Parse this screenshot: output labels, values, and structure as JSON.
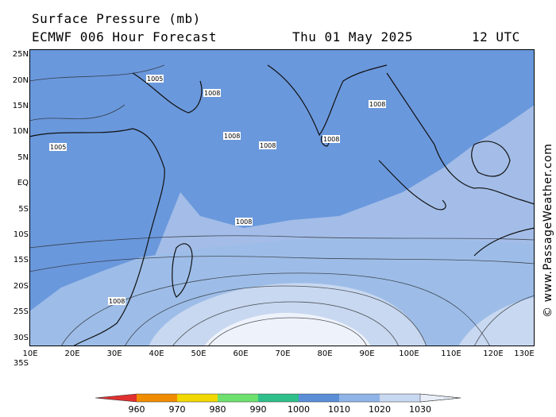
{
  "header": {
    "title": "Surface Pressure (mb)",
    "subtitle": "ECMWF 006 Hour Forecast",
    "date": "Thu 01 May 2025",
    "time": "12 UTC"
  },
  "credit": "© www.PassageWeather.com",
  "lat_labels": [
    "25N",
    "20N",
    "15N",
    "10N",
    "5N",
    "EQ",
    "5S",
    "10S",
    "15S",
    "20S",
    "25S",
    "30S",
    "35S"
  ],
  "lon_labels": [
    "10E",
    "20E",
    "30E",
    "40E",
    "50E",
    "60E",
    "70E",
    "80E",
    "90E",
    "100E",
    "110E",
    "120E",
    "130E"
  ],
  "scale": {
    "labels": [
      "960",
      "970",
      "980",
      "990",
      "1000",
      "1010",
      "1020",
      "1030"
    ],
    "colors": [
      "#e03030",
      "#f08c00",
      "#f0d800",
      "#6ee06e",
      "#2fbf8a",
      "#5a8fd8",
      "#8fb4e8",
      "#c8d8f0",
      "#e8eef8"
    ]
  },
  "colors": {
    "land": "#a3bde8",
    "low_pressure": "#6a98dc",
    "mid_pressure": "#9dbde8",
    "high_pressure": "#cbd9f1",
    "peak_high": "#eef2fb"
  },
  "isobar_label": "1008",
  "isobar_labels": [
    "1005",
    "1008"
  ]
}
